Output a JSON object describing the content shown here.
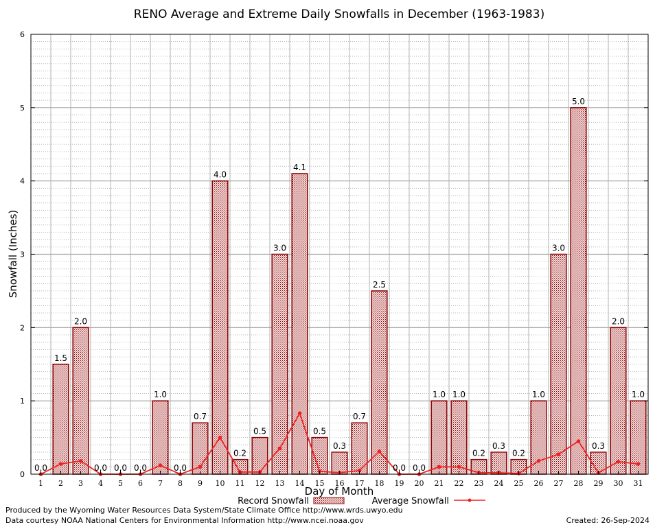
{
  "chart_data": {
    "type": "bar",
    "title": "RENO Average and Extreme Daily Snowfalls in December (1963-1983)",
    "xlabel": "Day of Month",
    "ylabel": "Snowfall (Inches)",
    "ylim": [
      0,
      6
    ],
    "yticks": [
      "0",
      "1",
      "2",
      "3",
      "4",
      "5",
      "6"
    ],
    "categories": [
      "1",
      "2",
      "3",
      "4",
      "5",
      "6",
      "7",
      "8",
      "9",
      "10",
      "11",
      "12",
      "13",
      "14",
      "15",
      "16",
      "17",
      "18",
      "19",
      "20",
      "21",
      "22",
      "23",
      "24",
      "25",
      "26",
      "27",
      "28",
      "29",
      "30",
      "31"
    ],
    "series": [
      {
        "name": "Record Snowfall",
        "kind": "bar",
        "values": [
          0.0,
          1.5,
          2.0,
          0.0,
          0.0,
          0.0,
          1.0,
          0.0,
          0.7,
          4.0,
          0.2,
          0.5,
          3.0,
          4.1,
          0.5,
          0.3,
          0.7,
          2.5,
          0.0,
          0.0,
          1.0,
          1.0,
          0.2,
          0.3,
          0.2,
          1.0,
          3.0,
          5.0,
          0.3,
          2.0,
          1.0
        ],
        "labels": [
          "0.0",
          "1.5",
          "2.0",
          "0.0",
          "0.0",
          "0.0",
          "1.0",
          "0.0",
          "0.7",
          "4.0",
          "0.2",
          "0.5",
          "3.0",
          "4.1",
          "0.5",
          "0.3",
          "0.7",
          "2.5",
          "0.0",
          "0.0",
          "1.0",
          "1.0",
          "0.2",
          "0.3",
          "0.2",
          "1.0",
          "3.0",
          "5.0",
          "0.3",
          "2.0",
          "1.0"
        ],
        "color": "#8b0000"
      },
      {
        "name": "Average Snowfall",
        "kind": "line",
        "values": [
          0.0,
          0.14,
          0.18,
          0.0,
          0.0,
          0.0,
          0.12,
          0.0,
          0.1,
          0.5,
          0.03,
          0.03,
          0.35,
          0.83,
          0.04,
          0.02,
          0.05,
          0.31,
          0.0,
          0.0,
          0.1,
          0.1,
          0.02,
          0.02,
          0.01,
          0.18,
          0.27,
          0.45,
          0.02,
          0.17,
          0.14
        ],
        "color": "#ee2222"
      }
    ],
    "legend": "bottom-center",
    "grid": true
  },
  "footer": {
    "produced_by": "Produced by the Wyoming Water Resources Data System/State Climate Office http://www.wrds.uwyo.edu",
    "courtesy": "Data courtesy NOAA National Centers for Environmental Information http://www.ncei.noaa.gov",
    "created": "Created:  26-Sep-2024"
  }
}
